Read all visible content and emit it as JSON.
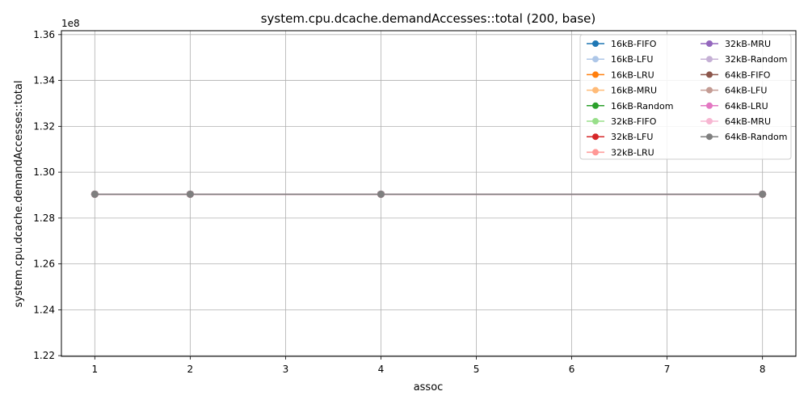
{
  "chart_data": {
    "type": "line",
    "title": "system.cpu.dcache.demandAccesses::total (200, base)",
    "xlabel": "assoc",
    "ylabel": "system.cpu.dcache.demandAccesses::total",
    "y_scale_label": "1e8",
    "x_ticks": [
      1,
      2,
      3,
      4,
      5,
      6,
      7,
      8
    ],
    "y_ticks": [
      1.22,
      1.24,
      1.26,
      1.28,
      1.3,
      1.32,
      1.34,
      1.36
    ],
    "y_tick_labels": [
      "1.22",
      "1.24",
      "1.26",
      "1.28",
      "1.30",
      "1.32",
      "1.34",
      "1.36"
    ],
    "xlim": [
      0.65,
      8.35
    ],
    "ylim": [
      1.2197,
      1.3617
    ],
    "grid": true,
    "legend_position": "top-right",
    "legend_columns": 2,
    "x": [
      1,
      2,
      4,
      8
    ],
    "series": [
      {
        "name": "16kB-FIFO",
        "color": "#1f77b4",
        "values": [
          1.2904,
          1.2904,
          1.2904,
          1.2904
        ]
      },
      {
        "name": "16kB-LFU",
        "color": "#aec7e8",
        "values": [
          1.2904,
          1.2904,
          1.2904,
          1.2904
        ]
      },
      {
        "name": "16kB-LRU",
        "color": "#ff7f0e",
        "values": [
          1.2904,
          1.2904,
          1.2904,
          1.2904
        ]
      },
      {
        "name": "16kB-MRU",
        "color": "#ffbb78",
        "values": [
          1.2904,
          1.2904,
          1.2904,
          1.2904
        ]
      },
      {
        "name": "16kB-Random",
        "color": "#2ca02c",
        "values": [
          1.2904,
          1.2904,
          1.2904,
          1.2904
        ]
      },
      {
        "name": "32kB-FIFO",
        "color": "#98df8a",
        "values": [
          1.2904,
          1.2904,
          1.2904,
          1.2904
        ]
      },
      {
        "name": "32kB-LFU",
        "color": "#d62728",
        "values": [
          1.2904,
          1.2904,
          1.2904,
          1.2904
        ]
      },
      {
        "name": "32kB-LRU",
        "color": "#ff9896",
        "values": [
          1.2904,
          1.2904,
          1.2904,
          1.2904
        ]
      },
      {
        "name": "32kB-MRU",
        "color": "#9467bd",
        "values": [
          1.2904,
          1.2904,
          1.2904,
          1.2904
        ]
      },
      {
        "name": "32kB-Random",
        "color": "#c5b0d5",
        "values": [
          1.2904,
          1.2904,
          1.2904,
          1.2904
        ]
      },
      {
        "name": "64kB-FIFO",
        "color": "#8c564b",
        "values": [
          1.2904,
          1.2904,
          1.2904,
          1.2904
        ]
      },
      {
        "name": "64kB-LFU",
        "color": "#c49c94",
        "values": [
          1.2904,
          1.2904,
          1.2904,
          1.2904
        ]
      },
      {
        "name": "64kB-LRU",
        "color": "#e377c2",
        "values": [
          1.2904,
          1.2904,
          1.2904,
          1.2904
        ]
      },
      {
        "name": "64kB-MRU",
        "color": "#f7b6d2",
        "values": [
          1.2904,
          1.2904,
          1.2904,
          1.2904
        ]
      },
      {
        "name": "64kB-Random",
        "color": "#7f7f7f",
        "values": [
          1.2904,
          1.2904,
          1.2904,
          1.2904
        ]
      }
    ]
  }
}
